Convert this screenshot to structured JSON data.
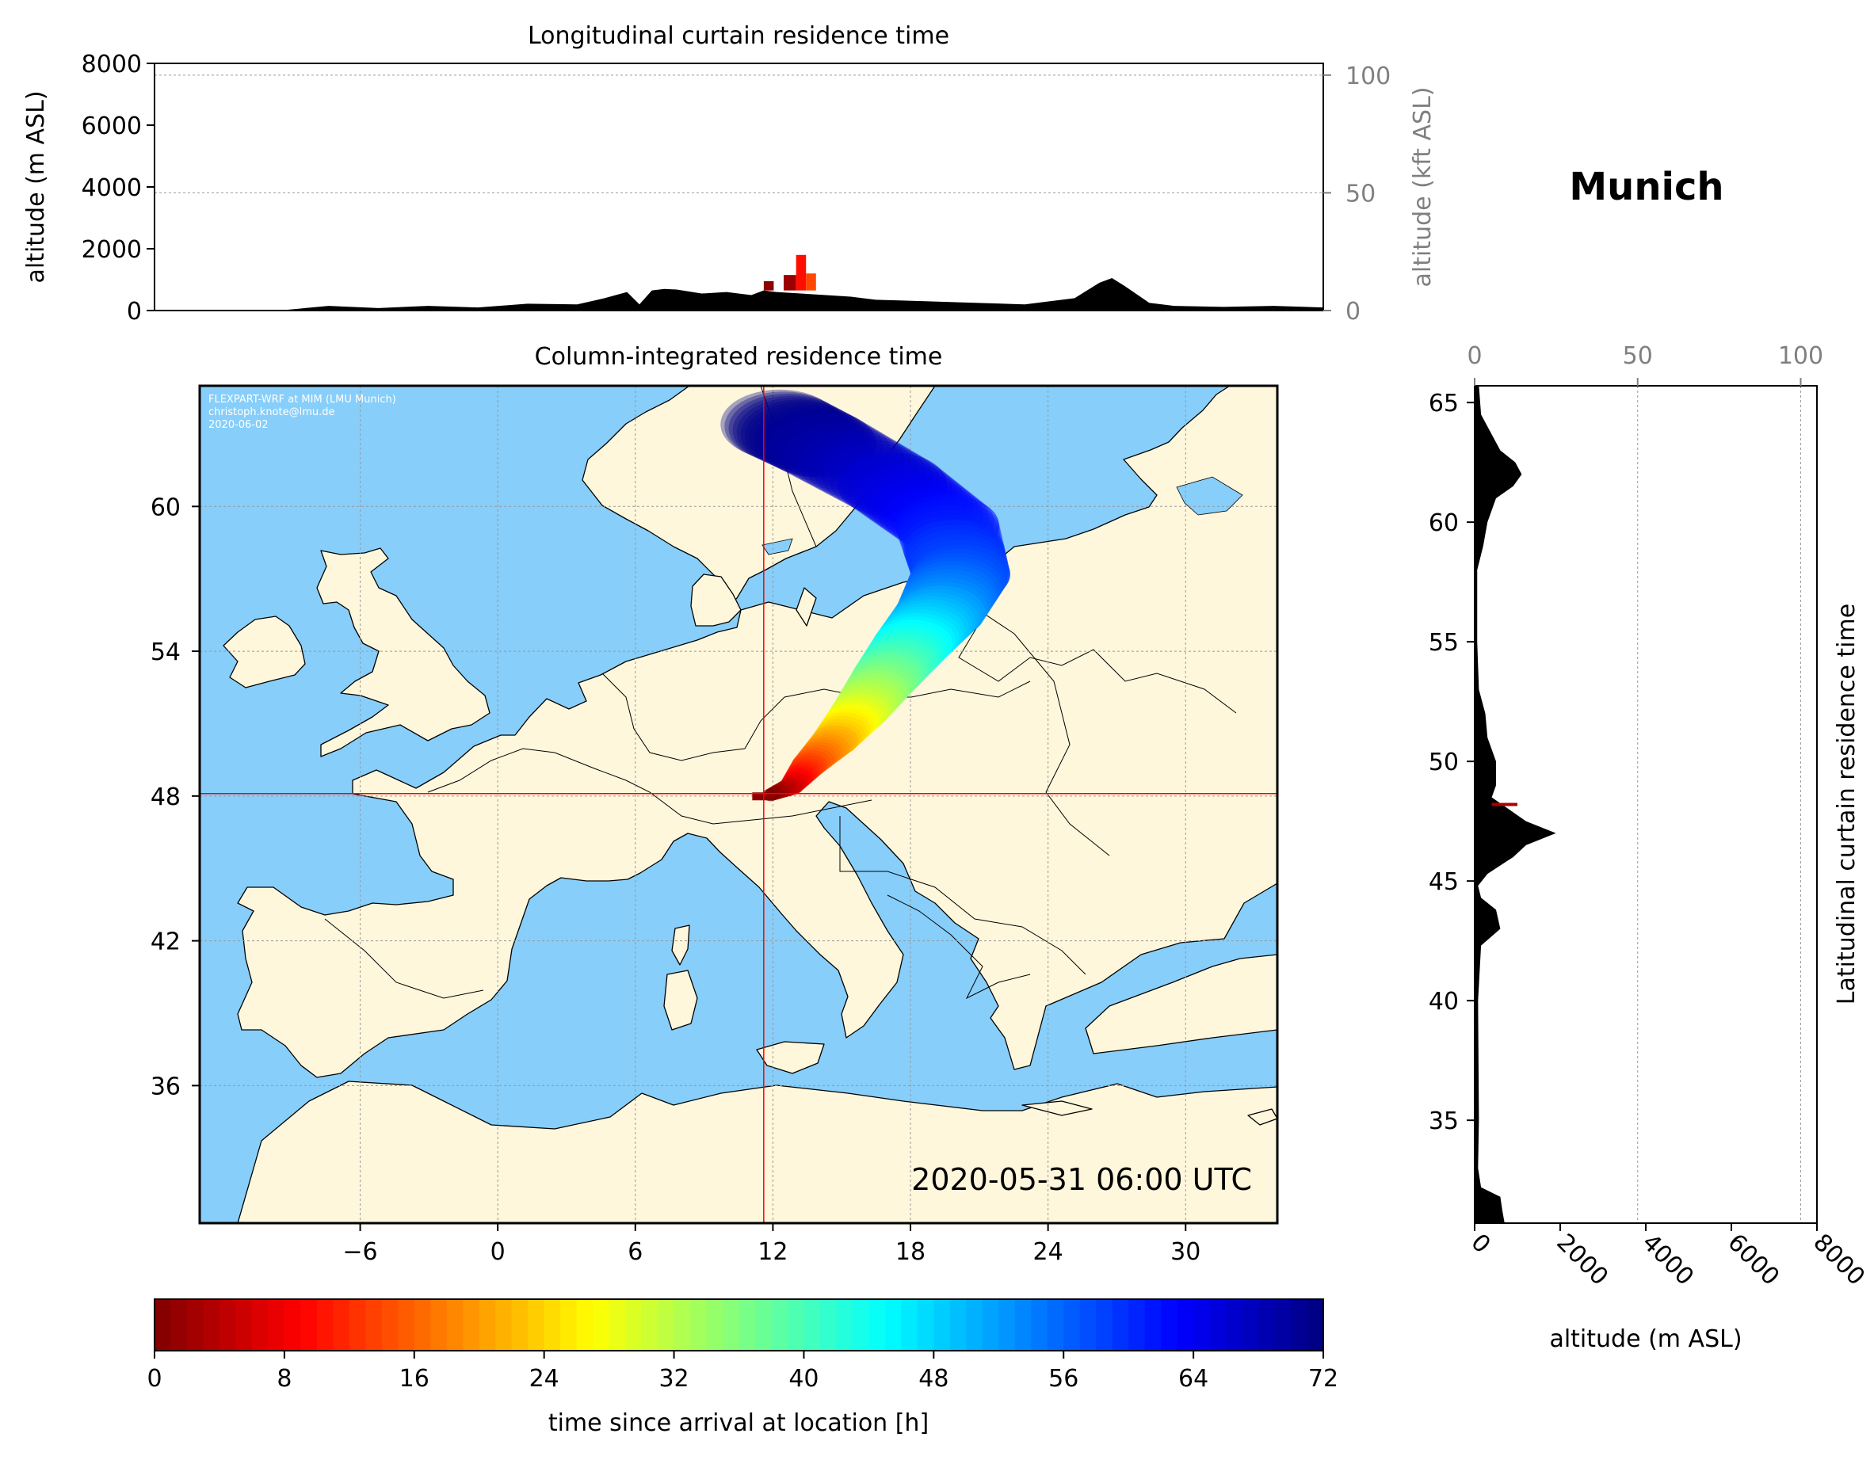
{
  "city_title": "Munich",
  "chart_data": [
    {
      "type": "area",
      "title": "Longitudinal curtain residence time",
      "ylabel": "altitude (m ASL)",
      "ylabel_right": "altitude (kft ASL)",
      "ylim": [
        0,
        8000
      ],
      "yticks": [
        "0",
        "2000",
        "4000",
        "6000",
        "8000"
      ],
      "yticks_right": [
        "0",
        "50",
        "100"
      ],
      "xlim": [
        -13,
        34
      ],
      "terrain": {
        "x": [
          -13,
          -8,
          -6,
          -4,
          -2,
          0,
          2,
          4,
          5,
          6,
          6.5,
          7,
          7.5,
          8,
          9,
          10,
          11,
          11.5,
          12,
          13,
          14,
          15,
          16,
          18,
          20,
          22,
          24,
          25,
          25.5,
          26,
          27,
          28,
          30,
          32,
          34
        ],
        "y": [
          0,
          0,
          150,
          80,
          150,
          100,
          220,
          200,
          380,
          600,
          200,
          650,
          700,
          680,
          550,
          600,
          500,
          650,
          600,
          550,
          500,
          450,
          350,
          300,
          250,
          200,
          400,
          900,
          1050,
          800,
          250,
          150,
          120,
          150,
          100
        ]
      },
      "plume": [
        {
          "x0": 11.5,
          "x1": 11.9,
          "y0": 650,
          "y1": 950,
          "hours": 1
        },
        {
          "x0": 12.3,
          "x1": 12.8,
          "y0": 650,
          "y1": 1150,
          "hours": 2
        },
        {
          "x0": 12.8,
          "x1": 13.2,
          "y0": 650,
          "y1": 1800,
          "hours": 10
        },
        {
          "x0": 13.2,
          "x1": 13.6,
          "y0": 650,
          "y1": 1200,
          "hours": 14
        }
      ]
    },
    {
      "type": "heatmap",
      "title": "Column-integrated residence time",
      "xlim": [
        -13,
        34
      ],
      "ylim": [
        30.3,
        65
      ],
      "xticks": [
        "-6",
        "0",
        "6",
        "12",
        "18",
        "24",
        "30"
      ],
      "yticks": [
        "36",
        "42",
        "48",
        "54",
        "60"
      ],
      "receptor": {
        "lon": 11.6,
        "lat": 48.1
      },
      "timestamp": "2020-05-31 06:00 UTC",
      "credit": [
        "FLEXPART-WRF at MIM (LMU Munich)",
        "christoph.knote@lmu.de",
        "2020-06-02"
      ],
      "colors": {
        "ocean": "#87cefa",
        "land": "#fff7dc",
        "crosshair": "#ff0000"
      },
      "trajectory": [
        {
          "lon": 11.9,
          "lat": 48.05,
          "hours": 0
        },
        {
          "lon": 12.8,
          "lat": 48.4,
          "hours": 6
        },
        {
          "lon": 13.6,
          "lat": 49.3,
          "hours": 14
        },
        {
          "lon": 14.7,
          "lat": 50.3,
          "hours": 22
        },
        {
          "lon": 15.8,
          "lat": 51.5,
          "hours": 30
        },
        {
          "lon": 17.0,
          "lat": 53.0,
          "hours": 38
        },
        {
          "lon": 18.1,
          "lat": 54.3,
          "hours": 45
        },
        {
          "lon": 19.3,
          "lat": 55.6,
          "hours": 52
        },
        {
          "lon": 20.2,
          "lat": 57.2,
          "hours": 58
        },
        {
          "lon": 19.6,
          "lat": 59.2,
          "hours": 62
        },
        {
          "lon": 17.2,
          "lat": 60.9,
          "hours": 66
        },
        {
          "lon": 14.0,
          "lat": 62.6,
          "hours": 70
        },
        {
          "lon": 12.3,
          "lat": 63.4,
          "hours": 72
        }
      ]
    },
    {
      "type": "area",
      "title": "Latitudinal curtain residence time",
      "xlabel": "altitude (m ASL)",
      "xlim": [
        0,
        8000
      ],
      "xticks": [
        "0",
        "2000",
        "4000",
        "6000",
        "8000"
      ],
      "xticks_top": [
        "0",
        "50",
        "100"
      ],
      "ylim": [
        30.7,
        65.7
      ],
      "yticks": [
        "35",
        "40",
        "45",
        "50",
        "55",
        "60",
        "65"
      ],
      "terrain": {
        "y": [
          30.7,
          31.2,
          31.8,
          32.2,
          33,
          35,
          40,
          42.3,
          43,
          43.8,
          44.3,
          44.8,
          45.3,
          46,
          46.5,
          47,
          47.5,
          48,
          48.5,
          49,
          50,
          51,
          52,
          53,
          55,
          58,
          59,
          60,
          61,
          61.5,
          62,
          62.5,
          63,
          64,
          64.5,
          65.7
        ],
        "x": [
          700,
          650,
          600,
          150,
          80,
          100,
          80,
          150,
          600,
          500,
          150,
          80,
          300,
          900,
          1200,
          1900,
          1200,
          800,
          400,
          500,
          500,
          300,
          250,
          100,
          60,
          60,
          200,
          300,
          500,
          900,
          1100,
          950,
          600,
          300,
          150,
          100
        ]
      },
      "plume": [
        {
          "lat": 48.2,
          "x0": 400,
          "x1": 1000,
          "hours": 3
        }
      ]
    },
    {
      "type": "colorbar",
      "xlabel": "time since arrival at location [h]",
      "range": [
        0,
        72
      ],
      "ticks": [
        "0",
        "8",
        "16",
        "24",
        "32",
        "40",
        "48",
        "56",
        "64",
        "72"
      ]
    }
  ]
}
